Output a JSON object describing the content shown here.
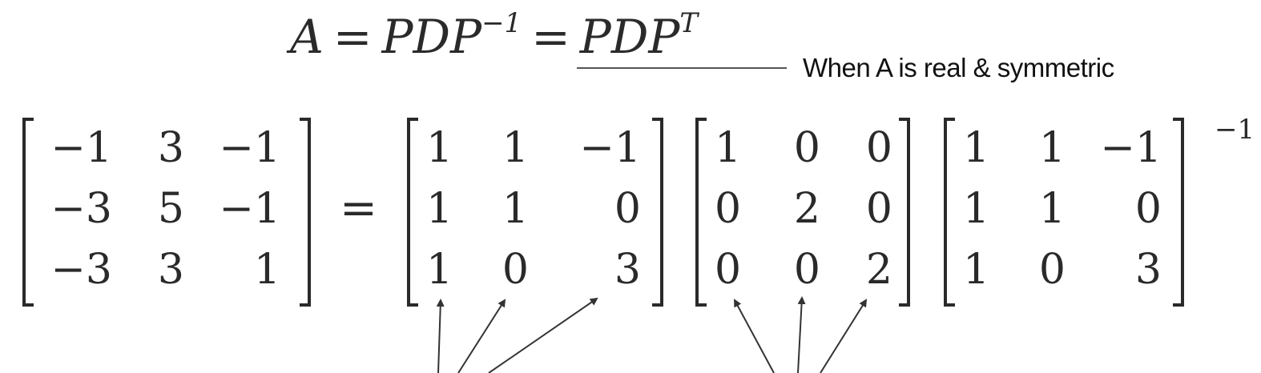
{
  "formula": {
    "lhs": "A",
    "eq1": "=",
    "mid_base": "PDP",
    "mid_exp": "−1",
    "eq2": "=",
    "rhs_base": "PDP",
    "rhs_exp": "T"
  },
  "condition_label": "When A is real & symmetric",
  "equals": "=",
  "inverse_exponent": "−1",
  "matrices": {
    "A": [
      [
        "−1",
        "3",
        "−1"
      ],
      [
        "−3",
        "5",
        "−1"
      ],
      [
        "−3",
        "3",
        "1"
      ]
    ],
    "P": [
      [
        "1",
        "1",
        "−1"
      ],
      [
        "1",
        "1",
        "0"
      ],
      [
        "1",
        "0",
        "3"
      ]
    ],
    "D": [
      [
        "1",
        "0",
        "0"
      ],
      [
        "0",
        "2",
        "0"
      ],
      [
        "0",
        "0",
        "2"
      ]
    ],
    "P_inverse_base": [
      [
        "1",
        "1",
        "−1"
      ],
      [
        "1",
        "1",
        "0"
      ],
      [
        "1",
        "0",
        "3"
      ]
    ]
  },
  "colors": {
    "ink": "#2a2a2a",
    "arrow": "#333333"
  }
}
